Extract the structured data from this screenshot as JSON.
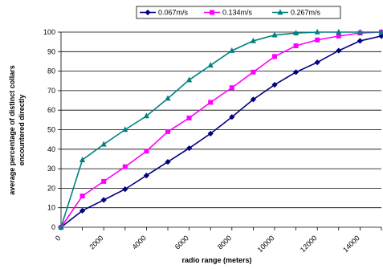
{
  "chart_data": {
    "type": "line",
    "title": "",
    "xlabel": "radio range (meters)",
    "ylabel_lines": [
      "average percentage of distinct collars",
      "encountered directly"
    ],
    "x": [
      0,
      1000,
      2000,
      3000,
      4000,
      5000,
      6000,
      7000,
      8000,
      9000,
      10000,
      11000,
      12000,
      13000,
      14000,
      15000
    ],
    "xlim": [
      0,
      15000
    ],
    "xticks": [
      0,
      2000,
      4000,
      6000,
      8000,
      10000,
      12000,
      14000
    ],
    "ylim": [
      0,
      100
    ],
    "yticks": [
      0,
      10,
      20,
      30,
      40,
      50,
      60,
      70,
      80,
      90,
      100
    ],
    "grid": "horizontal",
    "legend_position": "top",
    "series": [
      {
        "name": "0.067m/s",
        "color": "#000080",
        "marker": "diamond",
        "values": [
          0,
          8.5,
          14,
          19.5,
          26.5,
          33.5,
          40.5,
          48,
          56.5,
          65.5,
          73,
          79.5,
          84.5,
          90.5,
          95.5,
          98
        ]
      },
      {
        "name": "0.134m/s",
        "color": "#ff00ff",
        "marker": "square",
        "values": [
          0,
          16,
          23.5,
          31,
          39,
          49,
          56,
          64,
          71.5,
          79.5,
          87.5,
          93,
          96,
          98,
          99.5,
          100
        ]
      },
      {
        "name": "0.267m/s",
        "color": "#008080",
        "marker": "triangle",
        "values": [
          0,
          34.5,
          42.5,
          50,
          57,
          66,
          75.5,
          83,
          90.5,
          95.5,
          98.5,
          99.5,
          100,
          100,
          100,
          100
        ]
      }
    ]
  }
}
